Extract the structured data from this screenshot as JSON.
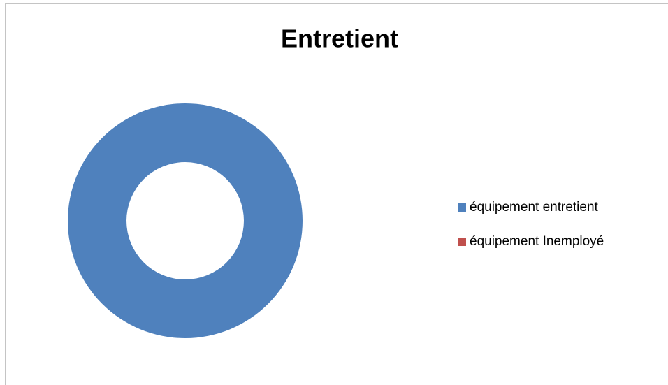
{
  "chart_data": {
    "type": "donut",
    "title": "Entretient",
    "categories": [
      "équipement entretient",
      "équipement Inemployé"
    ],
    "values": [
      100,
      0
    ],
    "colors": [
      "#4f81bd",
      "#c0504d"
    ],
    "legend": "right"
  }
}
